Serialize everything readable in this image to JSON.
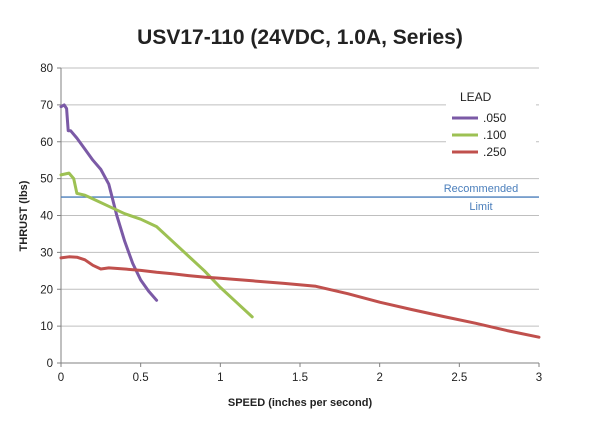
{
  "chart_data": {
    "type": "line",
    "title": "USV17-110 (24VDC, 1.0A, Series)",
    "xlabel": "SPEED (inches per second)",
    "ylabel": "THRUST (lbs)",
    "xlim": [
      0,
      3
    ],
    "ylim": [
      0,
      80
    ],
    "x_ticks": [
      "0",
      "0.5",
      "1",
      "1.5",
      "2",
      "2.5",
      "3"
    ],
    "y_ticks": [
      "0",
      "10",
      "20",
      "30",
      "40",
      "50",
      "60",
      "70",
      "80"
    ],
    "grid": "horizontal",
    "legend": {
      "title": "LEAD",
      "placement": "top-right"
    },
    "series": [
      {
        "name": ".050",
        "color": "#7b5aa6",
        "points": [
          [
            0,
            69.5
          ],
          [
            0.02,
            70
          ],
          [
            0.035,
            69
          ],
          [
            0.045,
            63
          ],
          [
            0.06,
            63
          ],
          [
            0.1,
            61
          ],
          [
            0.15,
            58
          ],
          [
            0.2,
            55
          ],
          [
            0.25,
            52.5
          ],
          [
            0.3,
            48.5
          ],
          [
            0.35,
            40
          ],
          [
            0.4,
            33
          ],
          [
            0.45,
            27
          ],
          [
            0.5,
            22.5
          ],
          [
            0.55,
            19.5
          ],
          [
            0.6,
            17
          ]
        ]
      },
      {
        "name": ".100",
        "color": "#9dc153",
        "points": [
          [
            0,
            51
          ],
          [
            0.05,
            51.5
          ],
          [
            0.08,
            50
          ],
          [
            0.1,
            46
          ],
          [
            0.15,
            45.5
          ],
          [
            0.2,
            44.5
          ],
          [
            0.3,
            42.5
          ],
          [
            0.4,
            40.5
          ],
          [
            0.5,
            39
          ],
          [
            0.6,
            37
          ],
          [
            0.7,
            33
          ],
          [
            0.8,
            29
          ],
          [
            0.9,
            25
          ],
          [
            1.0,
            20.5
          ],
          [
            1.1,
            16.5
          ],
          [
            1.2,
            12.5
          ]
        ]
      },
      {
        "name": ".250",
        "color": "#c0504d",
        "points": [
          [
            0,
            28.5
          ],
          [
            0.05,
            28.8
          ],
          [
            0.1,
            28.7
          ],
          [
            0.15,
            28
          ],
          [
            0.2,
            26.5
          ],
          [
            0.25,
            25.5
          ],
          [
            0.3,
            25.8
          ],
          [
            0.4,
            25.5
          ],
          [
            0.5,
            25.1
          ],
          [
            0.6,
            24.6
          ],
          [
            0.7,
            24.2
          ],
          [
            0.8,
            23.7
          ],
          [
            0.9,
            23.3
          ],
          [
            1.0,
            23
          ],
          [
            1.2,
            22.3
          ],
          [
            1.4,
            21.6
          ],
          [
            1.6,
            20.8
          ],
          [
            1.8,
            18.8
          ],
          [
            2.0,
            16.5
          ],
          [
            2.2,
            14.5
          ],
          [
            2.4,
            12.6
          ],
          [
            2.6,
            10.8
          ],
          [
            2.8,
            8.8
          ],
          [
            3.0,
            7
          ]
        ]
      }
    ],
    "reference_line": {
      "y": 45,
      "label_line1": "Recommended",
      "label_line2": "Limit",
      "color": "#4a7ebb"
    }
  }
}
